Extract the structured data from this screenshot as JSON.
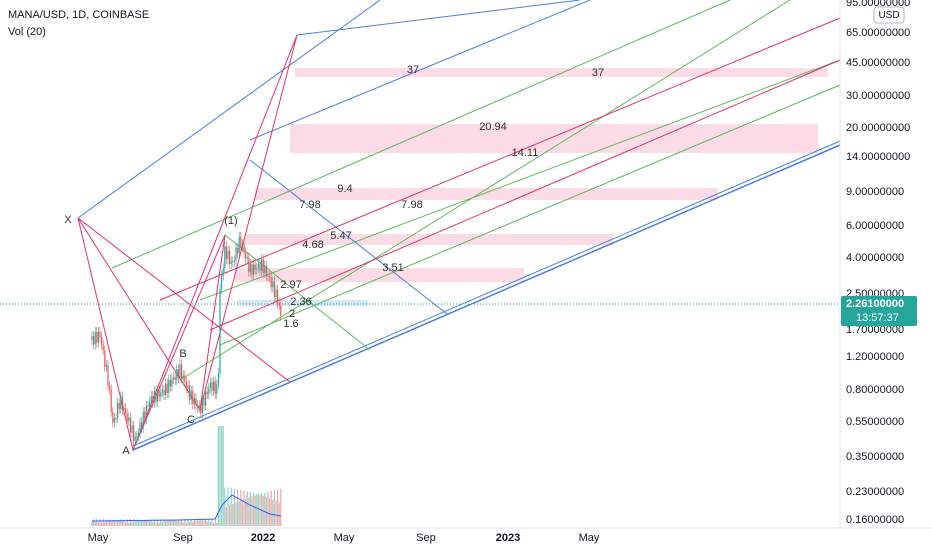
{
  "header": {
    "symbol": "MANA/USD, 1D, COINBASE",
    "indicator": "Vol (20)"
  },
  "price_axis": {
    "currency": "USD",
    "labels": [
      "95.00000000",
      "65.00000000",
      "45.00000000",
      "30.00000000",
      "20.00000000",
      "14.00000000",
      "9.00000000",
      "6.00000000",
      "4.00000000",
      "2.50000000",
      "1.70000000",
      "1.20000000",
      "0.80000000",
      "0.55000000",
      "0.35000000",
      "0.23000000",
      "0.16000000"
    ],
    "current_price": "2.26100000",
    "countdown": "13:57:37"
  },
  "time_axis": {
    "labels": [
      "May",
      "Sep",
      "2022",
      "May",
      "Sep",
      "2023",
      "May"
    ]
  },
  "annotations": [
    "37",
    "37",
    "20.94",
    "14.11",
    "9.4",
    "7.98",
    "7.98",
    "5.47",
    "4.68",
    "3.51",
    "2.97",
    "2.36",
    "2",
    "1.6",
    "X",
    "A",
    "B",
    "C",
    "(1)"
  ]
}
